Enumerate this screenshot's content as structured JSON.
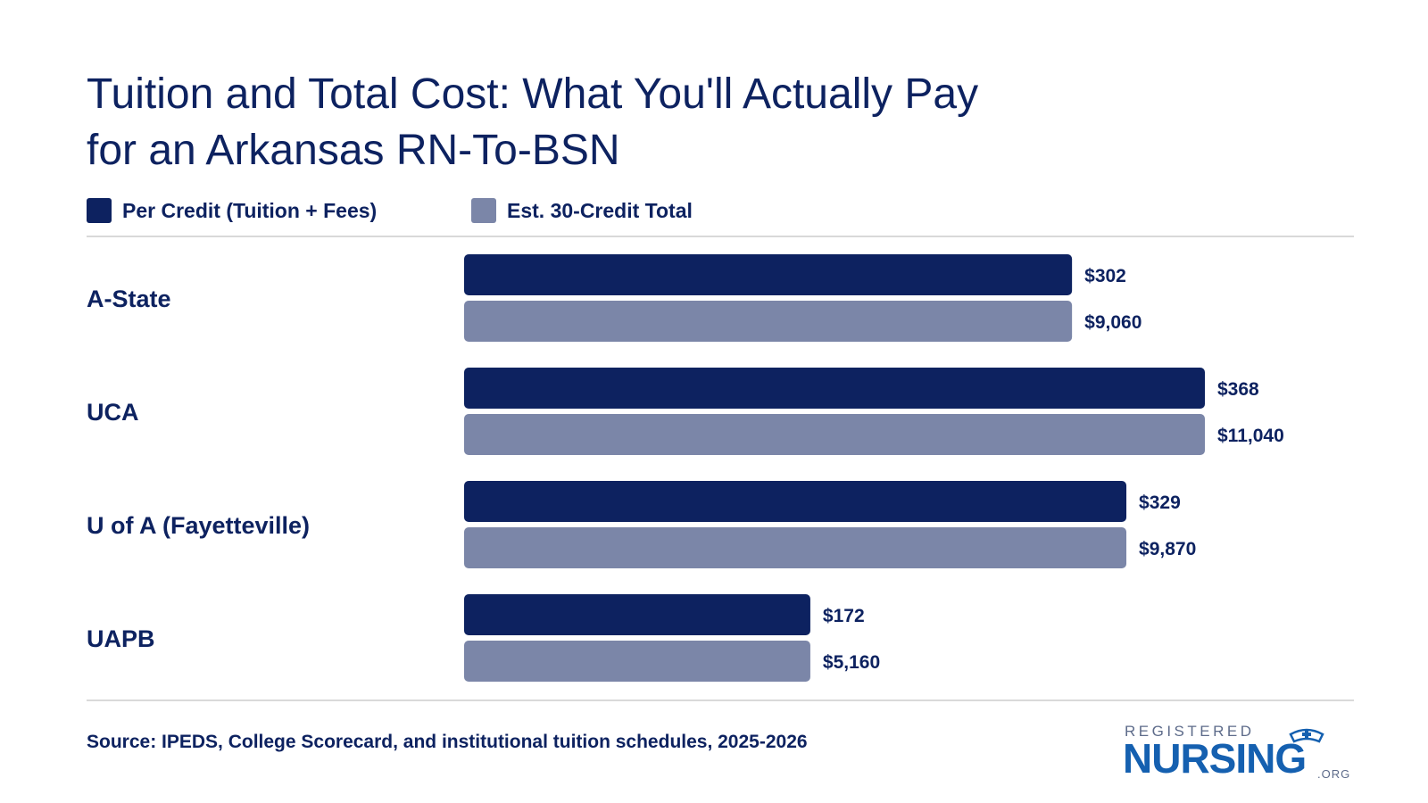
{
  "title_line1": "Tuition and Total Cost: What You'll Actually Pay",
  "title_line2": "for an Arkansas RN-To-BSN",
  "source": "Source: IPEDS, College Scorecard, and institutional tuition schedules, 2025-2026",
  "logo": {
    "top": "REGISTERED",
    "main": "NURSING",
    "suffix": ".ORG"
  },
  "chart_data": {
    "type": "bar",
    "orientation": "horizontal",
    "categories": [
      "A-State",
      "UCA",
      "U of A (Fayetteville)",
      "UAPB"
    ],
    "series": [
      {
        "name": "Per Credit (Tuition + Fees)",
        "values": [
          302,
          368,
          329,
          172
        ],
        "labels": [
          "$302",
          "$368",
          "$329",
          "$172"
        ],
        "color": "#0d2260"
      },
      {
        "name": "Est. 30-Credit Total",
        "values": [
          9060,
          11040,
          9870,
          5160
        ],
        "labels": [
          "$9,060",
          "$11,040",
          "$9,870",
          "$5,160"
        ],
        "color": "#7b86a8"
      }
    ],
    "legend_position": "top-left",
    "grid": false
  }
}
